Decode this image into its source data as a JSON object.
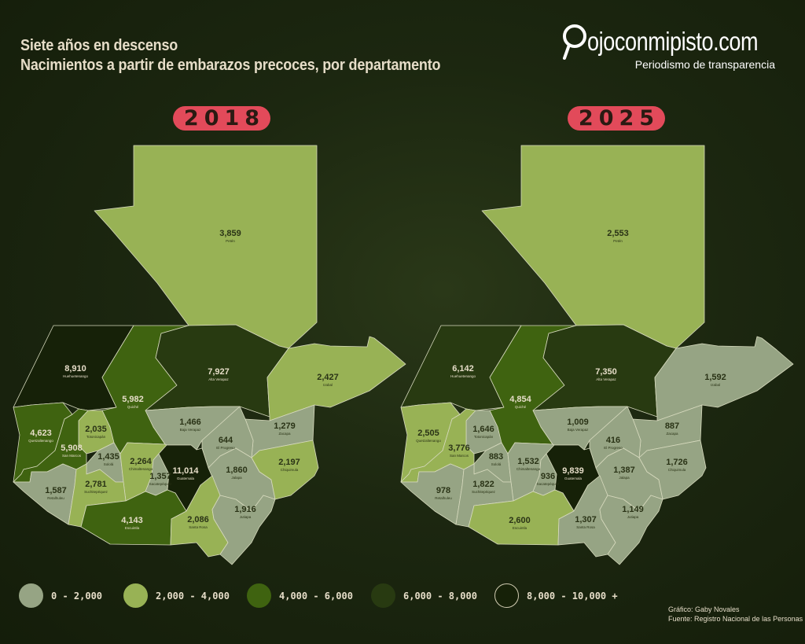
{
  "header": {
    "title_line1": "Siete años en descenso",
    "title_line2": "Nacimientos a partir de embarazos precoces, por departamento"
  },
  "logo": {
    "name": "ojoconmipisto.com",
    "tagline": "Periodismo de transparencia"
  },
  "colors": {
    "pill": "#e24a5a",
    "text_light": "#e6ddc8",
    "text_dark": "#2a3316"
  },
  "legend": [
    {
      "label": "0 - 2,000",
      "min": 0,
      "max": 2000,
      "color": "#96a484"
    },
    {
      "label": "2,000 - 4,000",
      "min": 2000,
      "max": 4000,
      "color": "#98b255"
    },
    {
      "label": "4,000 - 6,000",
      "min": 4000,
      "max": 6000,
      "color": "#3f6310"
    },
    {
      "label": "6,000 - 8,000",
      "min": 6000,
      "max": 8000,
      "color": "#283a11"
    },
    {
      "label": "8,000 - 10,000 +",
      "min": 8000,
      "max": 1000000,
      "color": "#162108"
    }
  ],
  "maps": [
    {
      "year": "2018",
      "departments": [
        {
          "name": "Petén",
          "value": "3,859"
        },
        {
          "name": "Huehuetenango",
          "value": "8,910"
        },
        {
          "name": "Quiché",
          "value": "5,982"
        },
        {
          "name": "Alta Verapaz",
          "value": "7,927"
        },
        {
          "name": "Izabal",
          "value": "2,427"
        },
        {
          "name": "Quetzaltenango",
          "value": "4,623"
        },
        {
          "name": "Totonicapán",
          "value": "2,035"
        },
        {
          "name": "San Marcos",
          "value": "5,908"
        },
        {
          "name": "Baja Verapaz",
          "value": "1,466"
        },
        {
          "name": "Zacapa",
          "value": "1,279"
        },
        {
          "name": "El Progreso",
          "value": "644"
        },
        {
          "name": "Sololá",
          "value": "1,435"
        },
        {
          "name": "Chimaltenango",
          "value": "2,264"
        },
        {
          "name": "Sacatepéquez",
          "value": "1,357"
        },
        {
          "name": "Guatemala",
          "value": "11,014"
        },
        {
          "name": "Jalapa",
          "value": "1,860"
        },
        {
          "name": "Chiquimula",
          "value": "2,197"
        },
        {
          "name": "Retalhuleu",
          "value": "1,587"
        },
        {
          "name": "Suchitepéquez",
          "value": "2,781"
        },
        {
          "name": "Escuintla",
          "value": "4,143"
        },
        {
          "name": "Santa Rosa",
          "value": "2,086"
        },
        {
          "name": "Jutiapa",
          "value": "1,916"
        }
      ]
    },
    {
      "year": "2025",
      "departments": [
        {
          "name": "Petén",
          "value": "2,553"
        },
        {
          "name": "Huehuetenango",
          "value": "6,142"
        },
        {
          "name": "Quiché",
          "value": "4,854"
        },
        {
          "name": "Alta Verapaz",
          "value": "7,350"
        },
        {
          "name": "Izabal",
          "value": "1,592"
        },
        {
          "name": "Quetzaltenango",
          "value": "2,505"
        },
        {
          "name": "Totonicapán",
          "value": "1,646"
        },
        {
          "name": "San Marcos",
          "value": "3,776"
        },
        {
          "name": "Baja Verapaz",
          "value": "1,009"
        },
        {
          "name": "Zacapa",
          "value": "887"
        },
        {
          "name": "El Progreso",
          "value": "416"
        },
        {
          "name": "Sololá",
          "value": "883"
        },
        {
          "name": "Chimaltenango",
          "value": "1,532"
        },
        {
          "name": "Sacatepéquez",
          "value": "936"
        },
        {
          "name": "Guatemala",
          "value": "9,839"
        },
        {
          "name": "Jalapa",
          "value": "1,387"
        },
        {
          "name": "Chiquimula",
          "value": "1,726"
        },
        {
          "name": "Retalhuleu",
          "value": "978"
        },
        {
          "name": "Suchitepéquez",
          "value": "1,822"
        },
        {
          "name": "Escuintla",
          "value": "2,600"
        },
        {
          "name": "Santa Rosa",
          "value": "1,307"
        },
        {
          "name": "Jutiapa",
          "value": "1,149"
        }
      ]
    }
  ],
  "credits": {
    "graphic": "Gráfico: Gaby Novales",
    "source": "Fuente:  Registro Nacional de las Personas"
  }
}
